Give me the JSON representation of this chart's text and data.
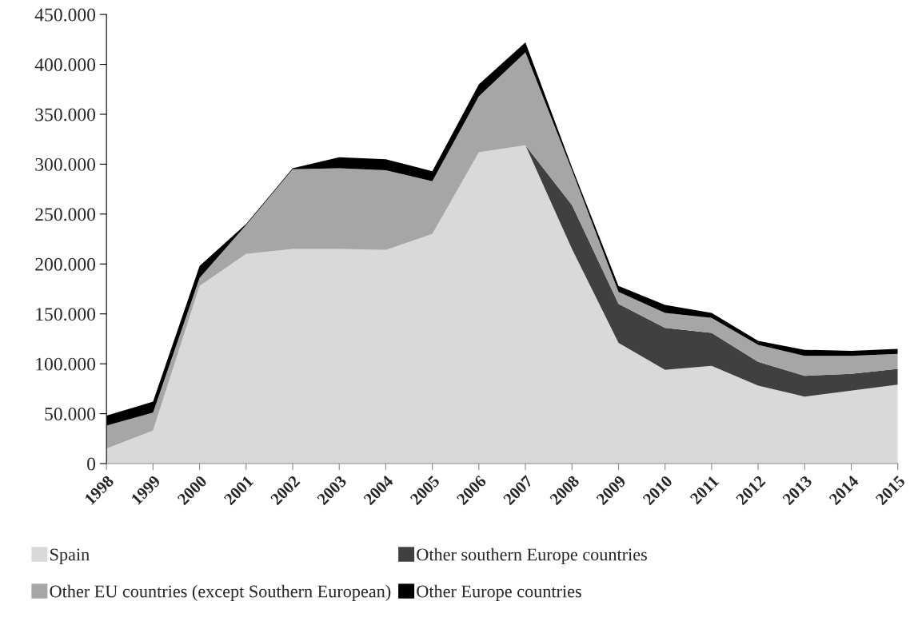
{
  "chart_data": {
    "type": "area",
    "stacked": true,
    "x": [
      "1998",
      "1999",
      "2000",
      "2001",
      "2002",
      "2003",
      "2004",
      "2005",
      "2006",
      "2007",
      "2008",
      "2009",
      "2010",
      "2011",
      "2012",
      "2013",
      "2014",
      "2015"
    ],
    "series": [
      {
        "name": "Spain",
        "color": "#d9d9d9",
        "values": [
          15000,
          33000,
          178000,
          210000,
          215000,
          215000,
          214000,
          230000,
          312000,
          319000,
          215000,
          121000,
          94000,
          98000,
          78000,
          67000,
          73000,
          79000
        ]
      },
      {
        "name": "Other southern Europe countries",
        "color": "#404040",
        "values": [
          0,
          0,
          0,
          0,
          0,
          0,
          0,
          0,
          0,
          0,
          44000,
          39000,
          42000,
          33000,
          24000,
          21000,
          17000,
          16000
        ]
      },
      {
        "name": "Other EU countries (except Southern European)",
        "color": "#a6a6a6",
        "values": [
          23000,
          18000,
          8000,
          29000,
          80000,
          81000,
          80000,
          53000,
          56000,
          93000,
          35000,
          12000,
          15000,
          15000,
          17000,
          20000,
          18000,
          15000
        ]
      },
      {
        "name": "Other Europe countries",
        "color": "#000000",
        "values": [
          10000,
          11000,
          12000,
          1000,
          1000,
          11000,
          11000,
          10000,
          12000,
          10000,
          3000,
          6000,
          8000,
          5000,
          4000,
          6000,
          5000,
          5000
        ]
      }
    ],
    "xlim": [
      "1998",
      "2015"
    ],
    "xticks": [
      "1998",
      "1999",
      "2000",
      "2001",
      "2002",
      "2003",
      "2004",
      "2005",
      "2006",
      "2007",
      "2008",
      "2009",
      "2010",
      "2011",
      "2012",
      "2013",
      "2014",
      "2015"
    ],
    "ylim": [
      0,
      450000
    ],
    "yticks": [
      0,
      {
        "value": 50000,
        "label": "50.000"
      },
      {
        "value": 100000,
        "label": "100.000"
      },
      {
        "value": 150000,
        "label": "150.000"
      },
      {
        "value": 200000,
        "label": "200.000"
      },
      {
        "value": 250000,
        "label": "250.000"
      },
      {
        "value": 300000,
        "label": "300.000"
      },
      {
        "value": 350000,
        "label": "350.000"
      },
      {
        "value": 400000,
        "label": "400.000"
      },
      {
        "value": 450000,
        "label": "450.000"
      }
    ],
    "grid": false,
    "legend": "bottom"
  }
}
